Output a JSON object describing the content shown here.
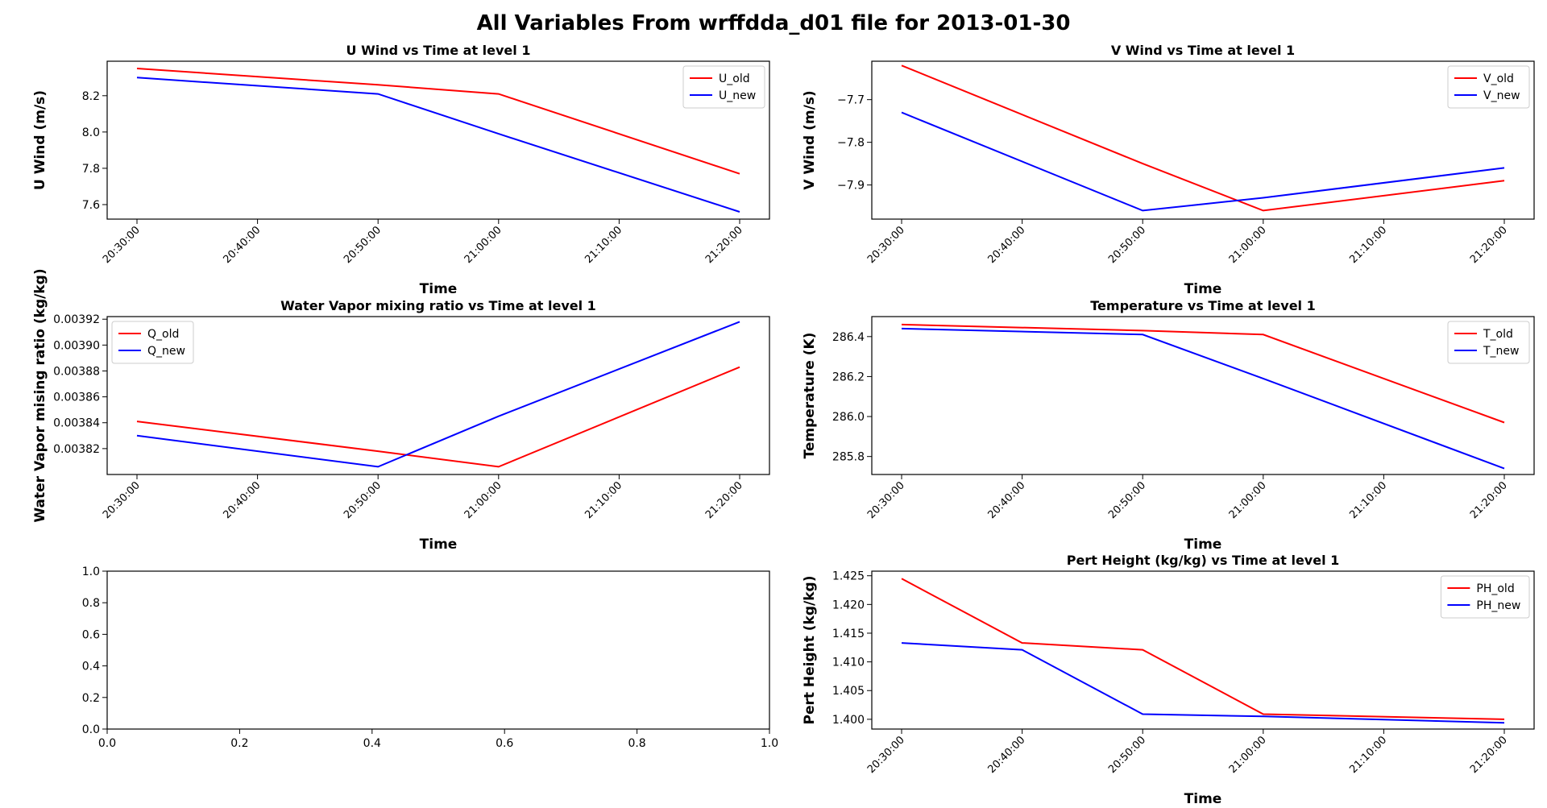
{
  "figure": {
    "title": "All Variables From wrffdda_d01 file for 2013-01-30",
    "colors": {
      "old": "#ff0000",
      "new": "#0000ff"
    }
  },
  "chart_data": [
    {
      "type": "line",
      "title": "U Wind vs Time at level 1",
      "xlabel": "Time",
      "ylabel": "U Wind (m/s)",
      "x_ticks": [
        "20:30:00",
        "20:40:00",
        "20:50:00",
        "21:00:00",
        "21:10:00",
        "21:20:00"
      ],
      "ylim": [
        7.52,
        8.39
      ],
      "y_ticks": [
        "7.6",
        "7.8",
        "8.0",
        "8.2"
      ],
      "legend": "top-right",
      "series": [
        {
          "name": "U_old",
          "color": "#ff0000",
          "x": [
            "20:30:00",
            "20:50:00",
            "21:00:00",
            "21:20:00"
          ],
          "y": [
            8.35,
            8.26,
            8.21,
            7.77
          ]
        },
        {
          "name": "U_new",
          "color": "#0000ff",
          "x": [
            "20:30:00",
            "20:50:00",
            "21:00:00",
            "21:20:00"
          ],
          "y": [
            8.3,
            8.21,
            7.99,
            7.56
          ]
        }
      ]
    },
    {
      "type": "line",
      "title": "V Wind vs Time at level 1",
      "xlabel": "Time",
      "ylabel": "V Wind (m/s)",
      "x_ticks": [
        "20:30:00",
        "20:40:00",
        "20:50:00",
        "21:00:00",
        "21:10:00",
        "21:20:00"
      ],
      "ylim": [
        -7.98,
        -7.61
      ],
      "y_ticks": [
        "−7.7",
        "−7.8",
        "−7.9"
      ],
      "legend": "top-right",
      "series": [
        {
          "name": "V_old",
          "color": "#ff0000",
          "x": [
            "20:30:00",
            "20:50:00",
            "21:00:00",
            "21:20:00"
          ],
          "y": [
            -7.62,
            -7.85,
            -7.96,
            -7.89
          ]
        },
        {
          "name": "V_new",
          "color": "#0000ff",
          "x": [
            "20:30:00",
            "20:50:00",
            "21:00:00",
            "21:20:00"
          ],
          "y": [
            -7.73,
            -7.96,
            -7.93,
            -7.86
          ]
        }
      ]
    },
    {
      "type": "line",
      "title": "Water Vapor mixing ratio vs Time at level 1",
      "xlabel": "Time",
      "ylabel": "Water Vapor mising ratio (kg/kg)",
      "x_ticks": [
        "20:30:00",
        "20:40:00",
        "20:50:00",
        "21:00:00",
        "21:10:00",
        "21:20:00"
      ],
      "ylim": [
        0.0038,
        0.003922
      ],
      "y_ticks": [
        "0.00382",
        "0.00384",
        "0.00386",
        "0.00388",
        "0.00390",
        "0.00392"
      ],
      "legend": "top-left",
      "series": [
        {
          "name": "Q_old",
          "color": "#ff0000",
          "x": [
            "20:30:00",
            "20:50:00",
            "21:00:00",
            "21:20:00"
          ],
          "y": [
            0.003841,
            0.003818,
            0.003806,
            0.003883
          ]
        },
        {
          "name": "Q_new",
          "color": "#0000ff",
          "x": [
            "20:30:00",
            "20:50:00",
            "21:00:00",
            "21:20:00"
          ],
          "y": [
            0.00383,
            0.003806,
            0.003845,
            0.003918
          ]
        }
      ]
    },
    {
      "type": "line",
      "title": "Temperature vs Time at level 1",
      "xlabel": "Time",
      "ylabel": "Temperature (K)",
      "x_ticks": [
        "20:30:00",
        "20:40:00",
        "20:50:00",
        "21:00:00",
        "21:10:00",
        "21:20:00"
      ],
      "ylim": [
        285.71,
        286.5
      ],
      "y_ticks": [
        "285.8",
        "286.0",
        "286.2",
        "286.4"
      ],
      "legend": "top-right",
      "series": [
        {
          "name": "T_old",
          "color": "#ff0000",
          "x": [
            "20:30:00",
            "20:50:00",
            "21:00:00",
            "21:20:00"
          ],
          "y": [
            286.46,
            286.43,
            286.41,
            285.97
          ]
        },
        {
          "name": "T_new",
          "color": "#0000ff",
          "x": [
            "20:30:00",
            "20:50:00",
            "21:00:00",
            "21:20:00"
          ],
          "y": [
            286.44,
            286.41,
            286.19,
            285.74
          ]
        }
      ]
    },
    {
      "type": "line",
      "title": "",
      "xlabel": "",
      "ylabel": "",
      "x_ticks": [
        "0.0",
        "0.2",
        "0.4",
        "0.6",
        "0.8",
        "1.0"
      ],
      "xlim": [
        0,
        1
      ],
      "ylim": [
        0,
        1
      ],
      "y_ticks": [
        "0.0",
        "0.2",
        "0.4",
        "0.6",
        "0.8",
        "1.0"
      ],
      "series": []
    },
    {
      "type": "line",
      "title": "Pert Height (kg/kg) vs Time at level 1",
      "xlabel": "Time",
      "ylabel": "Pert Height (kg/kg)",
      "x_ticks": [
        "20:30:00",
        "20:40:00",
        "20:50:00",
        "21:00:00",
        "21:10:00",
        "21:20:00"
      ],
      "ylim": [
        1.3983,
        1.4258
      ],
      "y_ticks": [
        "1.400",
        "1.405",
        "1.410",
        "1.415",
        "1.420",
        "1.425"
      ],
      "legend": "top-right",
      "series": [
        {
          "name": "PH_old",
          "color": "#ff0000",
          "x": [
            "20:30:00",
            "20:40:00",
            "20:50:00",
            "21:00:00",
            "21:20:00"
          ],
          "y": [
            1.4245,
            1.4133,
            1.4121,
            1.4009,
            1.4
          ]
        },
        {
          "name": "PH_new",
          "color": "#0000ff",
          "x": [
            "20:30:00",
            "20:40:00",
            "20:50:00",
            "21:00:00",
            "21:20:00"
          ],
          "y": [
            1.4133,
            1.4121,
            1.4009,
            1.4005,
            1.3994
          ]
        }
      ]
    }
  ]
}
